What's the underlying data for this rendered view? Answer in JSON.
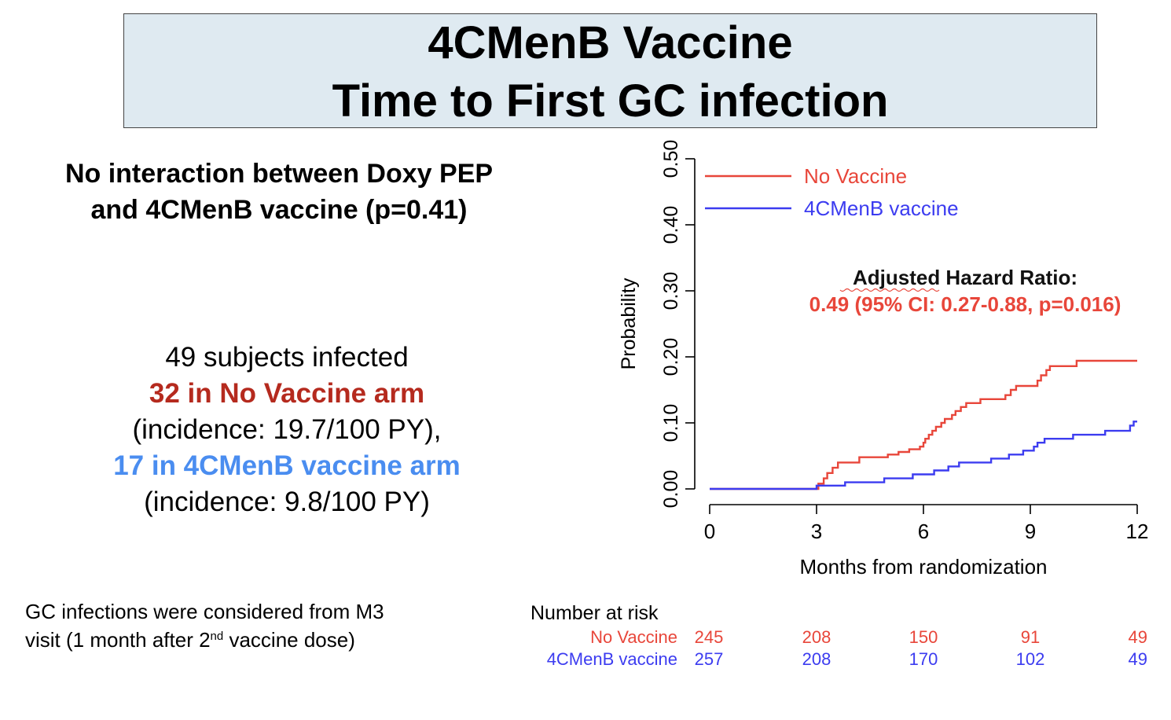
{
  "slide": {
    "title_line1": "4CMenB Vaccine",
    "title_line2": "Time to First GC infection",
    "interaction_line1": "No interaction between Doxy PEP",
    "interaction_line2": "and 4CMenB vaccine (p=0.41)",
    "infected_total": "49 subjects infected",
    "no_vaccine_arm": "32 in No Vaccine arm",
    "no_vaccine_incidence": "(incidence: 19.7/100 PY),",
    "vaccine_arm": "17 in 4CMenB vaccine arm",
    "vaccine_incidence": "(incidence: 9.8/100 PY)",
    "footnote_line1": "GC infections were considered from M3",
    "footnote_line2_pre": "visit (1 month after 2",
    "footnote_sup": "nd",
    "footnote_line2_post": " vaccine dose)"
  },
  "colors": {
    "no_vaccine": "#e8463a",
    "vaccine": "#3c3cf0",
    "no_vaccine_text": "#b52a1e",
    "vaccine_text": "#4a8df0",
    "title_bg": "#dfeaf1"
  },
  "chart_data": {
    "type": "line",
    "step": true,
    "xlabel": "Months from randomization",
    "ylabel": "Probability",
    "xlim": [
      0,
      12
    ],
    "ylim": [
      0,
      0.5
    ],
    "x_ticks": [
      "0",
      "3",
      "6",
      "9",
      "12"
    ],
    "y_ticks": [
      "0.00",
      "0.10",
      "0.20",
      "0.30",
      "0.40",
      "0.50"
    ],
    "legend_position": "top-left",
    "annotation_title": "Adjusted Hazard Ratio:",
    "annotation_value": "0.49 (95% CI: 0.27-0.88, p=0.016)",
    "series": [
      {
        "name": "No Vaccine",
        "color": "#e8463a",
        "points": [
          [
            0,
            0.0
          ],
          [
            3.0,
            0.0
          ],
          [
            3.05,
            0.008
          ],
          [
            3.2,
            0.016
          ],
          [
            3.3,
            0.024
          ],
          [
            3.45,
            0.032
          ],
          [
            3.6,
            0.04
          ],
          [
            4.2,
            0.048
          ],
          [
            4.4,
            0.048
          ],
          [
            5.0,
            0.052
          ],
          [
            5.3,
            0.056
          ],
          [
            5.6,
            0.06
          ],
          [
            5.9,
            0.064
          ],
          [
            6.0,
            0.07
          ],
          [
            6.05,
            0.076
          ],
          [
            6.15,
            0.082
          ],
          [
            6.25,
            0.088
          ],
          [
            6.35,
            0.094
          ],
          [
            6.5,
            0.1
          ],
          [
            6.6,
            0.106
          ],
          [
            6.8,
            0.112
          ],
          [
            6.9,
            0.118
          ],
          [
            7.05,
            0.124
          ],
          [
            7.2,
            0.13
          ],
          [
            7.6,
            0.136
          ],
          [
            8.3,
            0.142
          ],
          [
            8.45,
            0.15
          ],
          [
            8.6,
            0.156
          ],
          [
            9.2,
            0.164
          ],
          [
            9.3,
            0.172
          ],
          [
            9.45,
            0.18
          ],
          [
            9.55,
            0.186
          ],
          [
            10.3,
            0.194
          ],
          [
            12.0,
            0.194
          ]
        ]
      },
      {
        "name": "4CMenB vaccine",
        "color": "#3c3cf0",
        "points": [
          [
            0,
            0.0
          ],
          [
            3.0,
            0.0
          ],
          [
            3.0,
            0.005
          ],
          [
            3.8,
            0.01
          ],
          [
            4.9,
            0.016
          ],
          [
            5.7,
            0.022
          ],
          [
            6.3,
            0.028
          ],
          [
            6.7,
            0.034
          ],
          [
            7.0,
            0.04
          ],
          [
            7.9,
            0.046
          ],
          [
            8.4,
            0.052
          ],
          [
            8.8,
            0.058
          ],
          [
            9.1,
            0.064
          ],
          [
            9.2,
            0.07
          ],
          [
            9.4,
            0.076
          ],
          [
            10.2,
            0.082
          ],
          [
            11.1,
            0.088
          ],
          [
            11.8,
            0.096
          ],
          [
            11.9,
            0.102
          ],
          [
            12.0,
            0.102
          ]
        ]
      }
    ],
    "risk_table": {
      "title": "Number at risk",
      "times": [
        0,
        3,
        6,
        9,
        12
      ],
      "rows": [
        {
          "name": "No Vaccine",
          "color": "#e8463a",
          "values": [
            "245",
            "208",
            "150",
            "91",
            "49"
          ]
        },
        {
          "name": "4CMenB vaccine",
          "color": "#3c3cf0",
          "values": [
            "257",
            "208",
            "170",
            "102",
            "49"
          ]
        }
      ]
    }
  }
}
